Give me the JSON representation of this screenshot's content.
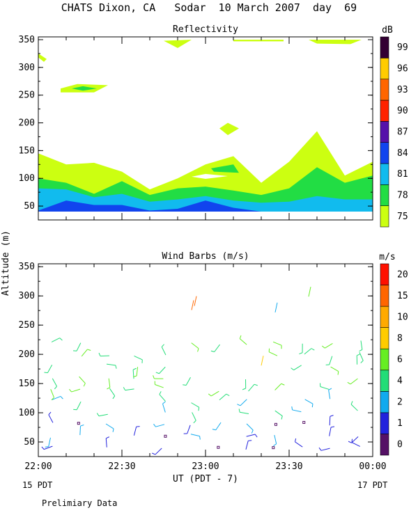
{
  "header": {
    "title": "CHATS Dixon, CA   Sodar  10 March 2007  day  69"
  },
  "footer": {
    "note": "Prelimiary Data",
    "start_date": "15 PDT",
    "end_date": "17 PDT"
  },
  "chart_data": [
    {
      "type": "heatmap",
      "title": "Reflectivity",
      "ylabel": "Altitude (m)",
      "ylim": [
        25,
        355
      ],
      "yticks": [
        50,
        100,
        150,
        200,
        250,
        300,
        350
      ],
      "xlim": [
        "22:00",
        "00:00"
      ],
      "colorbar_title": "dB",
      "colorbar_labels": [
        "75",
        "78",
        "81",
        "84",
        "87",
        "90",
        "93",
        "96",
        "99"
      ],
      "colorbar_colors": [
        "#ccff11",
        "#22dd44",
        "#11bbee",
        "#1144ee",
        "#5511aa",
        "#ff2200",
        "#ff6600",
        "#ffcc00",
        "#330033"
      ],
      "x": [
        "22:00",
        "22:10",
        "22:20",
        "22:30",
        "22:40",
        "22:50",
        "23:00",
        "23:10",
        "23:20",
        "23:30",
        "23:40",
        "23:50",
        "00:00"
      ],
      "contours": {
        "75_top": [
          145,
          125,
          128,
          112,
          80,
          100,
          125,
          140,
          92,
          130,
          185,
          105,
          130
        ],
        "78_top": [
          100,
          92,
          72,
          95,
          70,
          82,
          85,
          78,
          70,
          82,
          120,
          92,
          105
        ],
        "81_top": [
          82,
          80,
          66,
          72,
          58,
          62,
          68,
          60,
          56,
          58,
          68,
          62,
          62
        ],
        "84_top": [
          42,
          60,
          52,
          52,
          42,
          45,
          60,
          47,
          40,
          40,
          40,
          40,
          40
        ]
      }
    },
    {
      "type": "scatter",
      "title": "Wind Barbs (m/s)",
      "xlabel": "UT  (PDT - 7)",
      "ylabel": "Altitude (m)",
      "ylim": [
        25,
        355
      ],
      "yticks": [
        50,
        100,
        150,
        200,
        250,
        300,
        350
      ],
      "xticks": [
        "22:00",
        "22:30",
        "23:00",
        "23:30",
        "00:00"
      ],
      "colorbar_title": "m/s",
      "colorbar_labels": [
        "0",
        "1",
        "2",
        "4",
        "6",
        "8",
        "10",
        "15",
        "20"
      ],
      "colorbar_colors": [
        "#551166",
        "#2222dd",
        "#11aaee",
        "#22dd77",
        "#66ee22",
        "#ffcc00",
        "#ffaa00",
        "#ff6600",
        "#ff1100"
      ],
      "barb_altitudes": [
        40,
        60,
        80,
        100,
        120,
        140,
        160,
        180,
        200,
        220
      ]
    }
  ]
}
